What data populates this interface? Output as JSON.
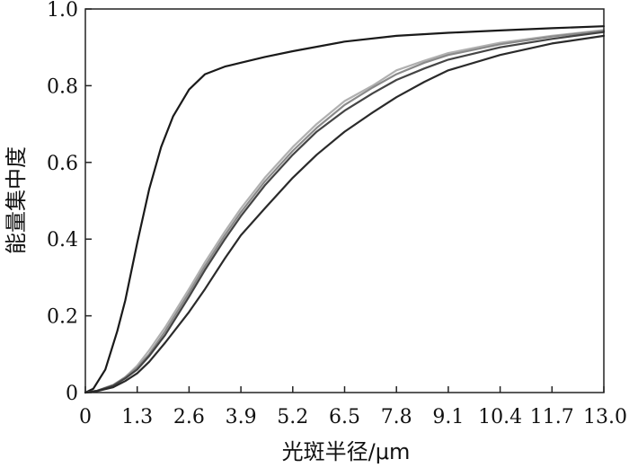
{
  "chart_data": {
    "type": "line",
    "xlabel": "光斑半径/μm",
    "ylabel": "能量集中度",
    "xlim": [
      0,
      13.0
    ],
    "ylim": [
      0,
      1.0
    ],
    "x_ticks": [
      0,
      1.3,
      2.6,
      3.9,
      5.2,
      6.5,
      7.8,
      9.1,
      10.4,
      11.7,
      13.0
    ],
    "x_tick_labels": [
      "0",
      "1.3",
      "2.6",
      "3.9",
      "5.2",
      "6.5",
      "7.8",
      "9.1",
      "10.4",
      "11.7",
      "13.0"
    ],
    "y_ticks": [
      0,
      0.2,
      0.4,
      0.6,
      0.8,
      1.0
    ],
    "y_tick_labels": [
      "0",
      "0.2",
      "0.4",
      "0.6",
      "0.8",
      "1.0"
    ],
    "grid": false,
    "legend": "none",
    "series": [
      {
        "color": "#1a1a1a",
        "x": [
          0,
          0.2,
          0.5,
          0.8,
          1.0,
          1.3,
          1.6,
          1.9,
          2.2,
          2.6,
          3.0,
          3.5,
          3.9,
          4.5,
          5.2,
          6.5,
          7.8,
          9.1,
          10.4,
          11.7,
          13.0
        ],
        "y": [
          0,
          0.01,
          0.06,
          0.16,
          0.24,
          0.39,
          0.53,
          0.64,
          0.72,
          0.79,
          0.83,
          0.85,
          0.86,
          0.875,
          0.89,
          0.915,
          0.93,
          0.938,
          0.944,
          0.95,
          0.955
        ]
      },
      {
        "color": "#b0b0b0",
        "x": [
          0,
          0.3,
          0.7,
          1.0,
          1.3,
          1.6,
          2.0,
          2.6,
          3.0,
          3.5,
          3.9,
          4.5,
          5.2,
          5.8,
          6.5,
          7.2,
          7.8,
          8.5,
          9.1,
          10.4,
          11.7,
          13.0
        ],
        "y": [
          0,
          0.005,
          0.02,
          0.04,
          0.07,
          0.11,
          0.17,
          0.27,
          0.34,
          0.42,
          0.48,
          0.56,
          0.64,
          0.7,
          0.76,
          0.8,
          0.84,
          0.865,
          0.885,
          0.912,
          0.93,
          0.945
        ]
      },
      {
        "color": "#8a8a8a",
        "x": [
          0,
          0.3,
          0.7,
          1.0,
          1.3,
          1.6,
          2.0,
          2.6,
          3.0,
          3.5,
          3.9,
          4.5,
          5.2,
          5.8,
          6.5,
          7.2,
          7.8,
          8.5,
          9.1,
          10.4,
          11.7,
          13.0
        ],
        "y": [
          0,
          0.005,
          0.02,
          0.04,
          0.065,
          0.1,
          0.16,
          0.26,
          0.33,
          0.41,
          0.47,
          0.55,
          0.63,
          0.69,
          0.75,
          0.795,
          0.83,
          0.86,
          0.88,
          0.908,
          0.928,
          0.943
        ]
      },
      {
        "color": "#444444",
        "x": [
          0,
          0.3,
          0.7,
          1.0,
          1.3,
          1.6,
          2.0,
          2.6,
          3.0,
          3.5,
          3.9,
          4.5,
          5.2,
          5.8,
          6.5,
          7.2,
          7.8,
          8.5,
          9.1,
          10.4,
          11.7,
          13.0
        ],
        "y": [
          0,
          0.005,
          0.018,
          0.037,
          0.06,
          0.095,
          0.15,
          0.25,
          0.32,
          0.4,
          0.46,
          0.54,
          0.62,
          0.68,
          0.735,
          0.78,
          0.815,
          0.845,
          0.868,
          0.9,
          0.922,
          0.94
        ]
      },
      {
        "color": "#2a2a2a",
        "x": [
          0,
          0.3,
          0.7,
          1.0,
          1.3,
          1.6,
          2.0,
          2.6,
          3.0,
          3.5,
          3.9,
          4.5,
          5.2,
          5.8,
          6.5,
          7.2,
          7.8,
          8.5,
          9.1,
          10.4,
          11.7,
          13.0
        ],
        "y": [
          0,
          0.004,
          0.014,
          0.03,
          0.05,
          0.08,
          0.13,
          0.21,
          0.27,
          0.35,
          0.41,
          0.48,
          0.56,
          0.62,
          0.68,
          0.73,
          0.77,
          0.81,
          0.84,
          0.88,
          0.91,
          0.93
        ]
      }
    ]
  }
}
